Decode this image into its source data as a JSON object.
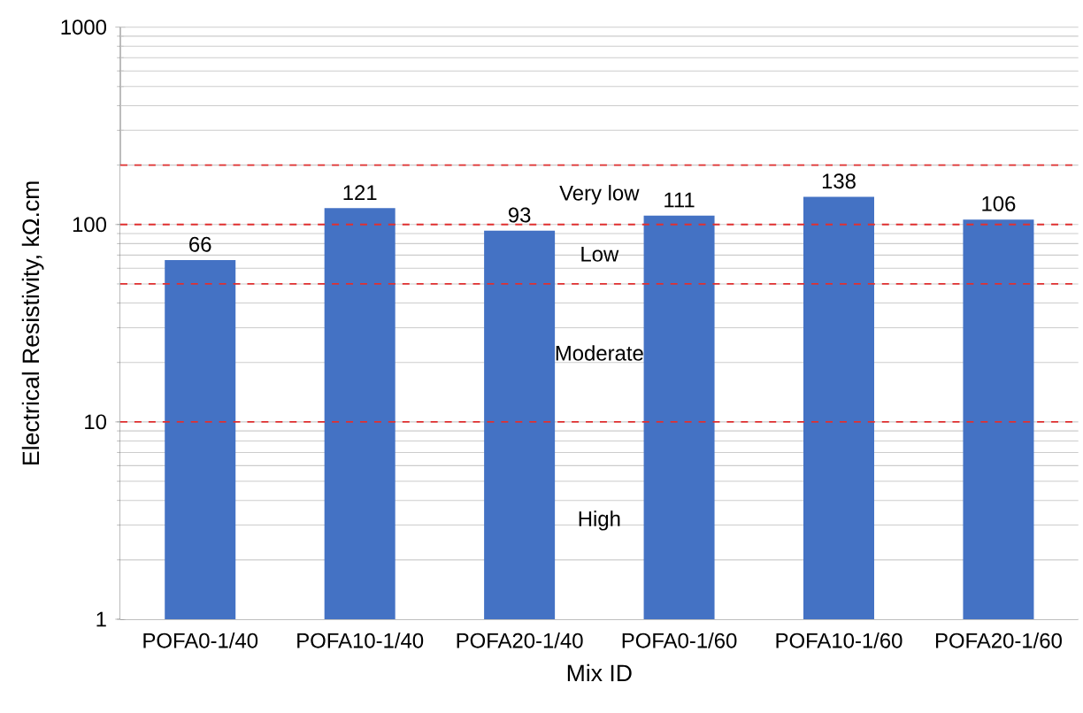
{
  "chart_data": {
    "type": "bar",
    "xlabel": "Mix ID",
    "ylabel": "Electrical Resistivity, kΩ.cm",
    "categories": [
      "POFA0-1/40",
      "POFA10-1/40",
      "POFA20-1/40",
      "POFA0-1/60",
      "POFA10-1/60",
      "POFA20-1/60"
    ],
    "values": [
      66,
      121,
      93,
      111,
      138,
      106
    ],
    "color": "#4472c4",
    "data_labels": true,
    "log": true,
    "ylim": [
      1,
      1000
    ],
    "yticks": [
      1,
      10,
      100,
      1000
    ],
    "grid": "y",
    "ref_lines": [
      {
        "axis": "y",
        "value": 10,
        "color": "#e03030",
        "line_style": "dashed"
      },
      {
        "axis": "y",
        "value": 50,
        "color": "#e03030",
        "line_style": "dashed"
      },
      {
        "axis": "y",
        "value": 100,
        "color": "#e03030",
        "line_style": "dashed"
      },
      {
        "axis": "y",
        "value": 200,
        "color": "#e03030",
        "line_style": "dashed"
      }
    ],
    "bands": [
      {
        "axis": "y",
        "from": 100,
        "to": 200,
        "label": "Very low",
        "color": "#ffffff"
      },
      {
        "axis": "y",
        "from": 50,
        "to": 100,
        "label": "Low",
        "color": "#ffffff"
      },
      {
        "axis": "y",
        "from": 10,
        "to": 50,
        "label": "Moderate",
        "color": "#ffffff"
      },
      {
        "axis": "y",
        "from": 1,
        "to": 10,
        "label": "High",
        "color": "#ffffff"
      }
    ]
  }
}
